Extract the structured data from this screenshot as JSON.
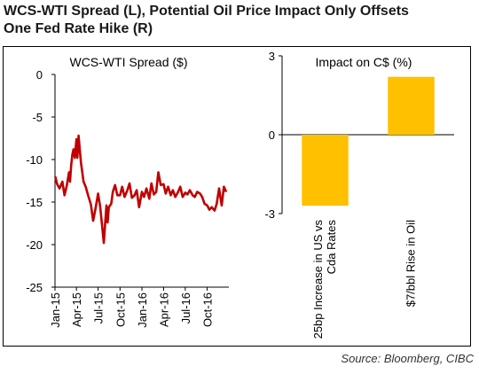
{
  "title_line1": "WCS-WTI Spread (L), Potential Oil Price Impact Only Offsets",
  "title_line2": "One Fed Rate Hike (R)",
  "source": "Source: Bloomberg, CIBC",
  "chart_data": [
    {
      "type": "line",
      "title": "WCS-WTI Spread ($)",
      "xlabel": "",
      "ylabel": "",
      "ylim": [
        -25,
        0
      ],
      "yticks": [
        0,
        -5,
        -10,
        -15,
        -20,
        -25
      ],
      "xticks": [
        "Jan-15",
        "Apr-15",
        "Jul-15",
        "Oct-15",
        "Jan-16",
        "Apr-16",
        "Jul-16",
        "Oct-16"
      ],
      "grid": false,
      "series": [
        {
          "color": "#c00000",
          "x": [
            "2015-01-02",
            "2015-01-10",
            "2015-01-20",
            "2015-02-01",
            "2015-02-10",
            "2015-02-20",
            "2015-03-01",
            "2015-03-05",
            "2015-03-10",
            "2015-03-15",
            "2015-03-20",
            "2015-03-25",
            "2015-04-01",
            "2015-04-05",
            "2015-04-10",
            "2015-04-15",
            "2015-04-20",
            "2015-05-01",
            "2015-05-10",
            "2015-05-20",
            "2015-06-01",
            "2015-06-10",
            "2015-06-20",
            "2015-07-01",
            "2015-07-10",
            "2015-07-20",
            "2015-07-25",
            "2015-08-01",
            "2015-08-05",
            "2015-08-10",
            "2015-08-15",
            "2015-08-25",
            "2015-09-01",
            "2015-09-10",
            "2015-09-20",
            "2015-10-01",
            "2015-10-10",
            "2015-10-20",
            "2015-11-01",
            "2015-11-10",
            "2015-11-20",
            "2015-12-01",
            "2015-12-10",
            "2015-12-20",
            "2016-01-01",
            "2016-01-10",
            "2016-01-20",
            "2016-02-01",
            "2016-02-10",
            "2016-02-20",
            "2016-03-01",
            "2016-03-10",
            "2016-03-20",
            "2016-04-01",
            "2016-04-10",
            "2016-04-20",
            "2016-05-01",
            "2016-05-10",
            "2016-05-20",
            "2016-06-01",
            "2016-06-10",
            "2016-06-20",
            "2016-07-01",
            "2016-07-10",
            "2016-07-20",
            "2016-08-01",
            "2016-08-10",
            "2016-08-20",
            "2016-09-01",
            "2016-09-10",
            "2016-09-20",
            "2016-10-01",
            "2016-10-10",
            "2016-10-20",
            "2016-11-01",
            "2016-11-10",
            "2016-11-20",
            "2016-12-01",
            "2016-12-10",
            "2016-12-20"
          ],
          "values": [
            -12.0,
            -12.9,
            -13.4,
            -12.6,
            -14.2,
            -13.0,
            -11.5,
            -12.6,
            -10.6,
            -9.4,
            -8.8,
            -9.8,
            -7.6,
            -9.8,
            -7.2,
            -8.8,
            -10.4,
            -12.6,
            -13.2,
            -14.2,
            -15.3,
            -17.2,
            -15.8,
            -14.0,
            -15.6,
            -18.4,
            -19.8,
            -17.0,
            -15.4,
            -17.4,
            -15.6,
            -15.2,
            -13.8,
            -13.0,
            -14.2,
            -14.2,
            -13.2,
            -14.4,
            -13.6,
            -12.8,
            -14.5,
            -14.2,
            -13.6,
            -15.6,
            -13.8,
            -14.4,
            -13.4,
            -14.6,
            -12.8,
            -14.1,
            -13.8,
            -11.5,
            -13.0,
            -12.9,
            -14.0,
            -13.2,
            -14.2,
            -13.6,
            -14.4,
            -13.8,
            -13.2,
            -14.4,
            -13.9,
            -14.1,
            -13.6,
            -14.2,
            -14.4,
            -13.8,
            -14.0,
            -14.4,
            -15.2,
            -15.4,
            -15.9,
            -15.6,
            -16.0,
            -15.2,
            -13.4,
            -15.4,
            -13.2,
            -13.8
          ]
        }
      ]
    },
    {
      "type": "bar",
      "title": "Impact on C$ (%)",
      "categories": [
        "25bp Increase in US vs Cda Rates",
        "$7/bbl Rise in Oil"
      ],
      "category_lines": [
        [
          "25bp Increase in US vs",
          "Cda Rates"
        ],
        [
          "$7/bbl Rise in Oil"
        ]
      ],
      "values": [
        -2.7,
        2.2
      ],
      "ylim": [
        -3,
        3
      ],
      "yticks": [
        3,
        0,
        -3
      ],
      "bar_color": "#ffc000",
      "grid": false
    }
  ]
}
